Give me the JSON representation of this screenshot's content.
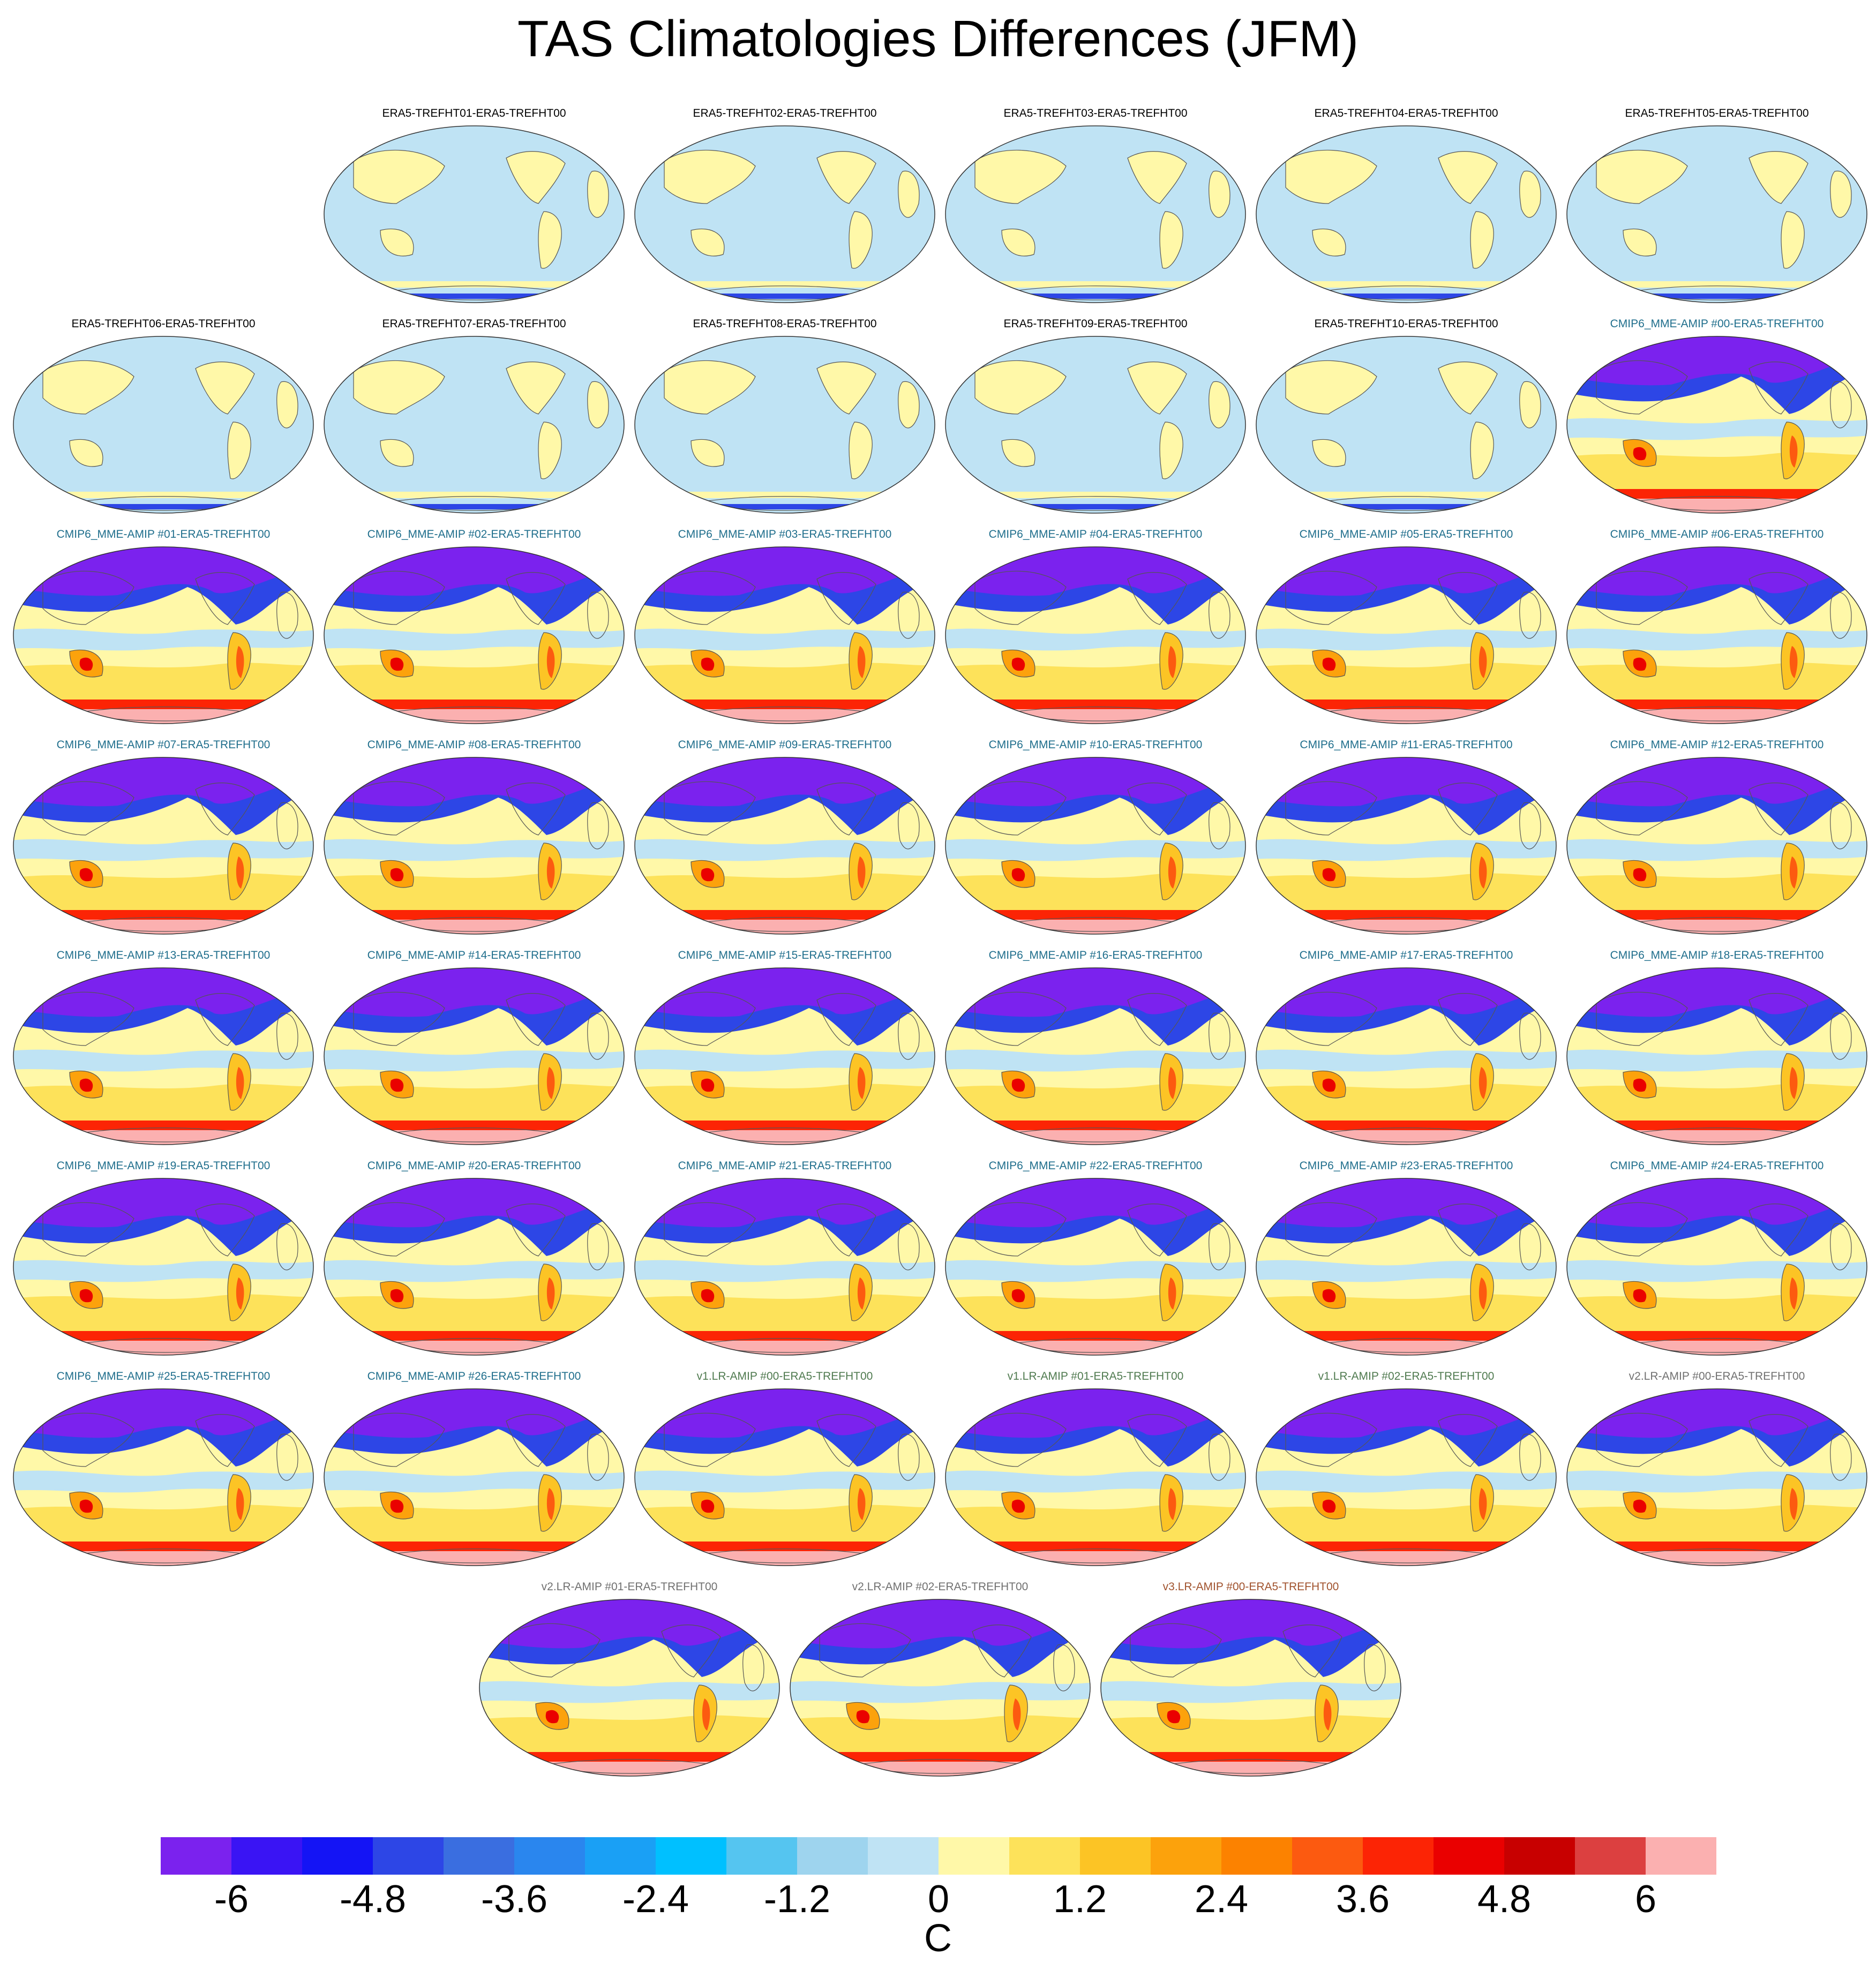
{
  "chart_data": {
    "type": "heatmap",
    "title": "TAS Climatologies Differences (JFM)",
    "units": "C",
    "colorbar": {
      "levels": [
        -6.6,
        -6,
        -5.4,
        -4.8,
        -4.2,
        -3.6,
        -3,
        -2.4,
        -1.8,
        -1.2,
        -0.6,
        0,
        0.6,
        1.2,
        1.8,
        2.4,
        3,
        3.6,
        4.2,
        4.8,
        5.4,
        6,
        6.6
      ],
      "colors": [
        "#7b22ee",
        "#3a14f4",
        "#1414f5",
        "#2d46e6",
        "#3a6ee0",
        "#2a86ee",
        "#1aa0f5",
        "#00c0ff",
        "#55c5f0",
        "#9ed4ee",
        "#bfe3f4",
        "#fff8a8",
        "#fde25a",
        "#fcc425",
        "#fca20c",
        "#fc8200",
        "#fc5a10",
        "#fc2405",
        "#ea0000",
        "#c80000",
        "#dc4040",
        "#fbb0b0"
      ],
      "tick_labels": [
        "-6",
        "-4.8",
        "-3.6",
        "-2.4",
        "-1.2",
        "0",
        "1.2",
        "2.4",
        "3.6",
        "4.8",
        "6"
      ]
    },
    "panels": [
      {
        "label": "ERA5-TREFHT01-ERA5-TREFHT00",
        "group": "era5"
      },
      {
        "label": "ERA5-TREFHT02-ERA5-TREFHT00",
        "group": "era5"
      },
      {
        "label": "ERA5-TREFHT03-ERA5-TREFHT00",
        "group": "era5"
      },
      {
        "label": "ERA5-TREFHT04-ERA5-TREFHT00",
        "group": "era5"
      },
      {
        "label": "ERA5-TREFHT05-ERA5-TREFHT00",
        "group": "era5"
      },
      {
        "label": "ERA5-TREFHT06-ERA5-TREFHT00",
        "group": "era5"
      },
      {
        "label": "ERA5-TREFHT07-ERA5-TREFHT00",
        "group": "era5"
      },
      {
        "label": "ERA5-TREFHT08-ERA5-TREFHT00",
        "group": "era5"
      },
      {
        "label": "ERA5-TREFHT09-ERA5-TREFHT00",
        "group": "era5"
      },
      {
        "label": "ERA5-TREFHT10-ERA5-TREFHT00",
        "group": "era5"
      },
      {
        "label": "CMIP6_MME-AMIP  #00-ERA5-TREFHT00",
        "group": "cmip6"
      },
      {
        "label": "CMIP6_MME-AMIP  #01-ERA5-TREFHT00",
        "group": "cmip6"
      },
      {
        "label": "CMIP6_MME-AMIP  #02-ERA5-TREFHT00",
        "group": "cmip6"
      },
      {
        "label": "CMIP6_MME-AMIP  #03-ERA5-TREFHT00",
        "group": "cmip6"
      },
      {
        "label": "CMIP6_MME-AMIP  #04-ERA5-TREFHT00",
        "group": "cmip6"
      },
      {
        "label": "CMIP6_MME-AMIP  #05-ERA5-TREFHT00",
        "group": "cmip6"
      },
      {
        "label": "CMIP6_MME-AMIP  #06-ERA5-TREFHT00",
        "group": "cmip6"
      },
      {
        "label": "CMIP6_MME-AMIP  #07-ERA5-TREFHT00",
        "group": "cmip6"
      },
      {
        "label": "CMIP6_MME-AMIP  #08-ERA5-TREFHT00",
        "group": "cmip6"
      },
      {
        "label": "CMIP6_MME-AMIP  #09-ERA5-TREFHT00",
        "group": "cmip6"
      },
      {
        "label": "CMIP6_MME-AMIP  #10-ERA5-TREFHT00",
        "group": "cmip6"
      },
      {
        "label": "CMIP6_MME-AMIP  #11-ERA5-TREFHT00",
        "group": "cmip6"
      },
      {
        "label": "CMIP6_MME-AMIP  #12-ERA5-TREFHT00",
        "group": "cmip6"
      },
      {
        "label": "CMIP6_MME-AMIP  #13-ERA5-TREFHT00",
        "group": "cmip6"
      },
      {
        "label": "CMIP6_MME-AMIP  #14-ERA5-TREFHT00",
        "group": "cmip6"
      },
      {
        "label": "CMIP6_MME-AMIP  #15-ERA5-TREFHT00",
        "group": "cmip6"
      },
      {
        "label": "CMIP6_MME-AMIP  #16-ERA5-TREFHT00",
        "group": "cmip6"
      },
      {
        "label": "CMIP6_MME-AMIP  #17-ERA5-TREFHT00",
        "group": "cmip6"
      },
      {
        "label": "CMIP6_MME-AMIP  #18-ERA5-TREFHT00",
        "group": "cmip6"
      },
      {
        "label": "CMIP6_MME-AMIP  #19-ERA5-TREFHT00",
        "group": "cmip6"
      },
      {
        "label": "CMIP6_MME-AMIP  #20-ERA5-TREFHT00",
        "group": "cmip6"
      },
      {
        "label": "CMIP6_MME-AMIP  #21-ERA5-TREFHT00",
        "group": "cmip6"
      },
      {
        "label": "CMIP6_MME-AMIP  #22-ERA5-TREFHT00",
        "group": "cmip6"
      },
      {
        "label": "CMIP6_MME-AMIP  #23-ERA5-TREFHT00",
        "group": "cmip6"
      },
      {
        "label": "CMIP6_MME-AMIP  #24-ERA5-TREFHT00",
        "group": "cmip6"
      },
      {
        "label": "CMIP6_MME-AMIP  #25-ERA5-TREFHT00",
        "group": "cmip6"
      },
      {
        "label": "CMIP6_MME-AMIP  #26-ERA5-TREFHT00",
        "group": "cmip6"
      },
      {
        "label": "v1.LR-AMIP  #00-ERA5-TREFHT00",
        "group": "v1"
      },
      {
        "label": "v1.LR-AMIP  #01-ERA5-TREFHT00",
        "group": "v1"
      },
      {
        "label": "v1.LR-AMIP  #02-ERA5-TREFHT00",
        "group": "v1"
      },
      {
        "label": "v2.LR-AMIP  #00-ERA5-TREFHT00",
        "group": "v2"
      },
      {
        "label": "v2.LR-AMIP  #01-ERA5-TREFHT00",
        "group": "v2"
      },
      {
        "label": "v2.LR-AMIP  #02-ERA5-TREFHT00",
        "group": "v2"
      },
      {
        "label": "v3.LR-AMIP  #00-ERA5-TREFHT00",
        "group": "v3"
      }
    ]
  },
  "label_colors": {
    "era5": "#000000",
    "cmip6": "#1f6e8c",
    "v1": "#4f7a4f",
    "v2": "#707070",
    "v3": "#a0522d"
  }
}
